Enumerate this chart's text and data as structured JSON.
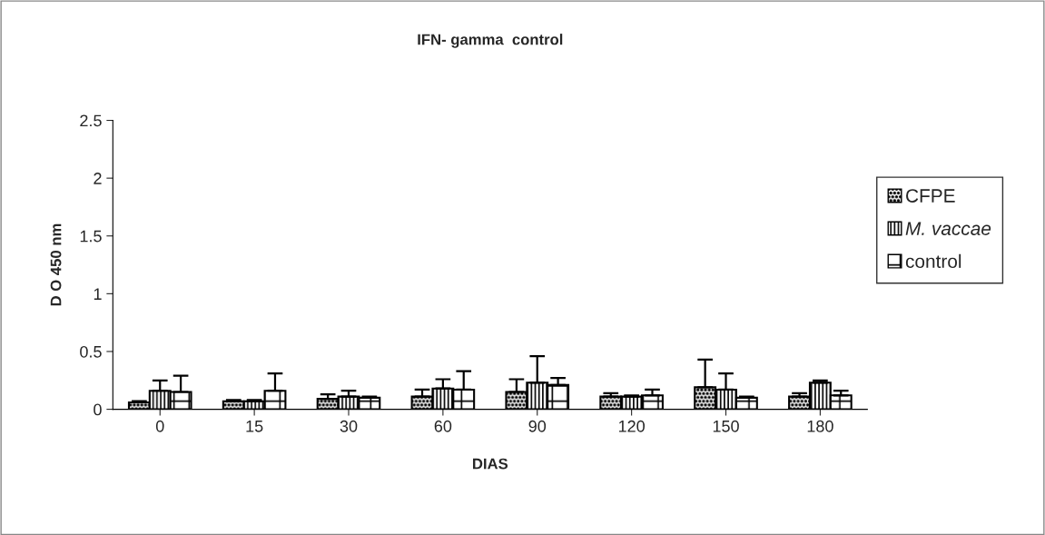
{
  "chart_data": {
    "type": "bar",
    "title": "IFN- gamma  control",
    "xlabel": "DIAS",
    "ylabel": "D O 450 nm",
    "categories": [
      "0",
      "15",
      "30",
      "60",
      "90",
      "120",
      "150",
      "180"
    ],
    "series": [
      {
        "name": "CFPE",
        "color": "#000000",
        "values": [
          0.06,
          0.07,
          0.09,
          0.11,
          0.15,
          0.11,
          0.19,
          0.11
        ],
        "errors": [
          [
            0.06,
            0.07
          ],
          [
            0.07,
            0.08
          ],
          [
            0.09,
            0.13
          ],
          [
            0.11,
            0.17
          ],
          [
            0.15,
            0.26
          ],
          [
            0.11,
            0.14
          ],
          [
            0.19,
            0.43
          ],
          [
            0.11,
            0.14
          ]
        ]
      },
      {
        "name": "M. vaccae",
        "color": "#000000",
        "values": [
          0.16,
          0.07,
          0.11,
          0.18,
          0.23,
          0.11,
          0.17,
          0.23
        ],
        "errors": [
          [
            0.16,
            0.25
          ],
          [
            0.07,
            0.08
          ],
          [
            0.11,
            0.16
          ],
          [
            0.18,
            0.26
          ],
          [
            0.23,
            0.46
          ],
          [
            0.11,
            0.12
          ],
          [
            0.17,
            0.31
          ],
          [
            0.23,
            0.25
          ]
        ]
      },
      {
        "name": "control",
        "color": "#000000",
        "values": [
          0.15,
          0.16,
          0.1,
          0.17,
          0.21,
          0.12,
          0.1,
          0.12
        ],
        "errors": [
          [
            0.15,
            0.29
          ],
          [
            0.16,
            0.31
          ],
          [
            0.1,
            0.11
          ],
          [
            0.17,
            0.33
          ],
          [
            0.21,
            0.27
          ],
          [
            0.12,
            0.17
          ],
          [
            0.1,
            0.11
          ],
          [
            0.12,
            0.16
          ]
        ]
      }
    ],
    "ylim": [
      0,
      2.5
    ],
    "yticks": [
      0,
      0.5,
      1,
      1.5,
      2,
      2.5
    ],
    "legend": "right"
  }
}
